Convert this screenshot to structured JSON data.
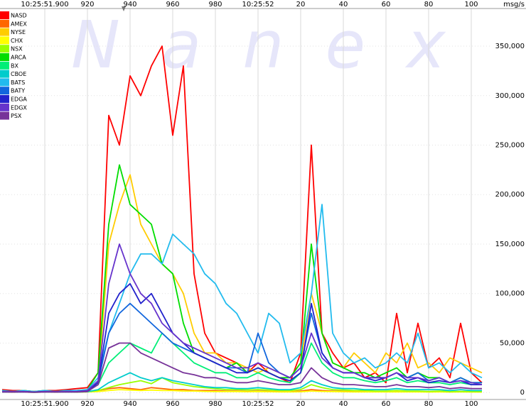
{
  "chart_data": {
    "type": "line",
    "watermark": "Nanex",
    "y_axis_label": "msg/s",
    "xlim": [
      879,
      1109
    ],
    "ylim": [
      -7000,
      388000
    ],
    "xticks": [
      {
        "value": 900,
        "label": "10:25:51.900"
      },
      920,
      940,
      960,
      980,
      {
        "value": 1000,
        "label": "10:25:52"
      },
      {
        "value": 1020,
        "label": "20"
      },
      {
        "value": 1040,
        "label": "40"
      },
      {
        "value": 1060,
        "label": "60"
      },
      {
        "value": 1080,
        "label": "80"
      },
      {
        "value": 1100,
        "label": "100"
      }
    ],
    "yticks": [
      0,
      {
        "value": 50000,
        "label": "50,000"
      },
      {
        "value": 100000,
        "label": "100,000"
      },
      {
        "value": 150000,
        "label": "150,000"
      },
      {
        "value": 200000,
        "label": "200,000"
      },
      {
        "value": 250000,
        "label": "250,000"
      },
      {
        "value": 300000,
        "label": "300,000"
      },
      {
        "value": 350000,
        "label": "350,000"
      }
    ],
    "grid": true,
    "legend_position": "upper-left",
    "x": [
      880,
      885,
      890,
      895,
      900,
      905,
      910,
      915,
      920,
      925,
      930,
      935,
      940,
      945,
      950,
      955,
      960,
      965,
      970,
      975,
      980,
      985,
      990,
      995,
      1000,
      1005,
      1010,
      1015,
      1020,
      1025,
      1030,
      1035,
      1040,
      1045,
      1050,
      1055,
      1060,
      1065,
      1070,
      1075,
      1080,
      1085,
      1090,
      1095,
      1100,
      1105
    ],
    "series": [
      {
        "name": "NASD",
        "color": "#ff0000",
        "values": [
          3000,
          2000,
          2000,
          1000,
          2000,
          2000,
          3000,
          4000,
          5000,
          20000,
          280000,
          250000,
          320000,
          300000,
          330000,
          350000,
          260000,
          330000,
          120000,
          60000,
          40000,
          35000,
          30000,
          20000,
          30000,
          20000,
          15000,
          10000,
          40000,
          250000,
          60000,
          40000,
          25000,
          30000,
          15000,
          20000,
          10000,
          80000,
          20000,
          70000,
          25000,
          35000,
          15000,
          70000,
          20000,
          10000
        ]
      },
      {
        "name": "AMEX",
        "color": "#ff6600",
        "values": [
          1000,
          500,
          800,
          500,
          600,
          700,
          500,
          800,
          1000,
          2000,
          4000,
          5000,
          4000,
          3000,
          5000,
          4000,
          3000,
          3000,
          2000,
          2000,
          2000,
          1500,
          1500,
          1000,
          1500,
          1200,
          1000,
          800,
          1500,
          3000,
          2000,
          1500,
          1200,
          1000,
          1000,
          900,
          800,
          1200,
          1000,
          900,
          800,
          1000,
          700,
          900,
          800,
          600
        ]
      },
      {
        "name": "NYSE",
        "color": "#ffcc00",
        "values": [
          1000,
          1000,
          2000,
          1000,
          1000,
          1000,
          2000,
          1000,
          2000,
          10000,
          150000,
          190000,
          220000,
          170000,
          150000,
          130000,
          120000,
          100000,
          60000,
          40000,
          40000,
          30000,
          30000,
          25000,
          20000,
          25000,
          20000,
          15000,
          30000,
          100000,
          60000,
          30000,
          25000,
          40000,
          30000,
          20000,
          40000,
          30000,
          50000,
          25000,
          30000,
          20000,
          35000,
          30000,
          25000,
          20000
        ]
      },
      {
        "name": "CHX",
        "color": "#ffff00",
        "values": [
          500,
          400,
          500,
          300,
          500,
          400,
          500,
          400,
          600,
          1000,
          2000,
          3000,
          2500,
          2000,
          2500,
          2000,
          2000,
          1500,
          1500,
          1200,
          1000,
          1000,
          1000,
          800,
          1000,
          800,
          700,
          600,
          800,
          1500,
          1200,
          1000,
          800,
          700,
          700,
          600,
          600,
          700,
          600,
          600,
          500,
          600,
          500,
          600,
          500,
          500
        ]
      },
      {
        "name": "NSX",
        "color": "#99ff00",
        "values": [
          500,
          500,
          600,
          500,
          500,
          600,
          500,
          700,
          800,
          2000,
          5000,
          8000,
          10000,
          12000,
          9000,
          15000,
          10000,
          8000,
          6000,
          5000,
          4000,
          3000,
          3000,
          2500,
          3000,
          2500,
          2000,
          2000,
          3000,
          8000,
          5000,
          3000,
          2500,
          2000,
          2000,
          1500,
          1500,
          2000,
          1500,
          1500,
          1200,
          1500,
          1000,
          1200,
          1000,
          1000
        ]
      },
      {
        "name": "ARCA",
        "color": "#00dd00",
        "values": [
          2000,
          1000,
          2000,
          1000,
          2000,
          1000,
          2000,
          2000,
          3000,
          20000,
          170000,
          230000,
          190000,
          180000,
          170000,
          130000,
          120000,
          70000,
          40000,
          35000,
          30000,
          25000,
          30000,
          20000,
          25000,
          20000,
          15000,
          15000,
          30000,
          150000,
          60000,
          30000,
          25000,
          20000,
          20000,
          15000,
          20000,
          25000,
          15000,
          20000,
          15000,
          15000,
          10000,
          15000,
          10000,
          10000
        ]
      },
      {
        "name": "BX",
        "color": "#00ee77",
        "values": [
          1000,
          1000,
          1000,
          500,
          1000,
          1000,
          1000,
          1000,
          2000,
          8000,
          30000,
          40000,
          50000,
          45000,
          40000,
          60000,
          50000,
          40000,
          30000,
          25000,
          20000,
          20000,
          15000,
          15000,
          20000,
          15000,
          12000,
          10000,
          20000,
          50000,
          30000,
          20000,
          15000,
          15000,
          12000,
          10000,
          12000,
          15000,
          10000,
          12000,
          10000,
          10000,
          8000,
          10000,
          8000,
          8000
        ]
      },
      {
        "name": "CBOE",
        "color": "#00cccc",
        "values": [
          500,
          500,
          500,
          300,
          500,
          500,
          500,
          500,
          800,
          3000,
          10000,
          15000,
          20000,
          15000,
          12000,
          15000,
          12000,
          10000,
          8000,
          6000,
          5000,
          5000,
          4000,
          4000,
          5000,
          4000,
          3000,
          3000,
          5000,
          12000,
          8000,
          5000,
          4000,
          4000,
          3000,
          3000,
          3000,
          4000,
          3000,
          3000,
          3000,
          3000,
          2000,
          3000,
          2000,
          2000
        ]
      },
      {
        "name": "BATS",
        "color": "#22bbee",
        "values": [
          2000,
          1000,
          2000,
          1000,
          2000,
          1000,
          2000,
          2000,
          3000,
          15000,
          60000,
          90000,
          120000,
          140000,
          140000,
          130000,
          160000,
          150000,
          140000,
          120000,
          110000,
          90000,
          80000,
          60000,
          40000,
          80000,
          70000,
          30000,
          40000,
          100000,
          190000,
          60000,
          40000,
          30000,
          35000,
          25000,
          30000,
          40000,
          30000,
          60000,
          25000,
          30000,
          20000,
          30000,
          20000,
          15000
        ]
      },
      {
        "name": "BATY",
        "color": "#1166dd",
        "values": [
          1000,
          1000,
          1000,
          500,
          1000,
          1000,
          1000,
          1000,
          2000,
          10000,
          60000,
          80000,
          90000,
          80000,
          70000,
          60000,
          50000,
          45000,
          40000,
          35000,
          30000,
          25000,
          25000,
          20000,
          60000,
          30000,
          20000,
          15000,
          25000,
          80000,
          40000,
          25000,
          20000,
          20000,
          15000,
          15000,
          15000,
          20000,
          15000,
          20000,
          12000,
          15000,
          10000,
          15000,
          10000,
          10000
        ]
      },
      {
        "name": "EDGA",
        "color": "#2222cc",
        "values": [
          1000,
          500,
          1000,
          500,
          1000,
          500,
          1000,
          1000,
          1500,
          10000,
          80000,
          100000,
          110000,
          90000,
          100000,
          80000,
          60000,
          50000,
          40000,
          35000,
          30000,
          25000,
          20000,
          20000,
          25000,
          20000,
          15000,
          12000,
          20000,
          90000,
          40000,
          25000,
          20000,
          20000,
          15000,
          12000,
          15000,
          20000,
          12000,
          15000,
          10000,
          12000,
          10000,
          12000,
          8000,
          8000
        ]
      },
      {
        "name": "EDGX",
        "color": "#6633cc",
        "values": [
          1000,
          1000,
          1000,
          500,
          1000,
          1000,
          1000,
          1000,
          2000,
          12000,
          110000,
          150000,
          120000,
          100000,
          90000,
          70000,
          60000,
          50000,
          45000,
          40000,
          35000,
          30000,
          25000,
          25000,
          30000,
          25000,
          20000,
          15000,
          25000,
          60000,
          35000,
          25000,
          20000,
          20000,
          15000,
          15000,
          15000,
          20000,
          15000,
          15000,
          12000,
          15000,
          10000,
          12000,
          10000,
          8000
        ]
      },
      {
        "name": "PSX",
        "color": "#773399",
        "values": [
          500,
          500,
          500,
          300,
          500,
          500,
          500,
          500,
          1000,
          8000,
          45000,
          50000,
          50000,
          40000,
          35000,
          30000,
          25000,
          20000,
          18000,
          15000,
          15000,
          12000,
          10000,
          10000,
          12000,
          10000,
          8000,
          8000,
          10000,
          25000,
          15000,
          10000,
          8000,
          8000,
          7000,
          6000,
          6000,
          8000,
          6000,
          6000,
          5000,
          6000,
          4000,
          5000,
          4000,
          4000
        ]
      }
    ]
  }
}
